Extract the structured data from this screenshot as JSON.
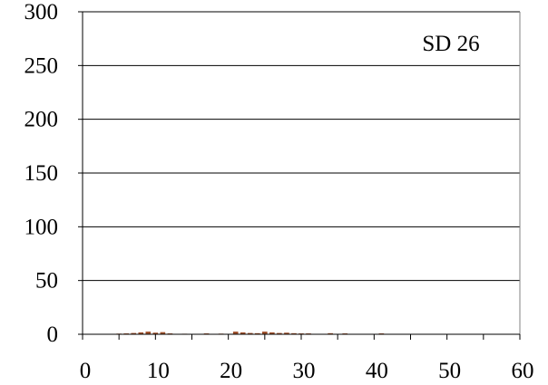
{
  "chart_data": {
    "type": "bar",
    "title": "",
    "xlabel": "",
    "ylabel": "",
    "annotation": "SD 26",
    "xlim": [
      0,
      60
    ],
    "ylim": [
      0,
      300
    ],
    "x_ticks": [
      0,
      10,
      20,
      30,
      40,
      50,
      60
    ],
    "y_ticks": [
      0,
      50,
      100,
      150,
      200,
      250,
      300
    ],
    "grid": "horizontal",
    "bar_color": "#a0522d",
    "bars": [
      {
        "x": 5,
        "value": 0.6
      },
      {
        "x": 6,
        "value": 0.8
      },
      {
        "x": 7,
        "value": 1.2
      },
      {
        "x": 8,
        "value": 1.8
      },
      {
        "x": 9,
        "value": 2.5
      },
      {
        "x": 10,
        "value": 1.5
      },
      {
        "x": 11,
        "value": 2.0
      },
      {
        "x": 12,
        "value": 0.8
      },
      {
        "x": 14,
        "value": 0.5
      },
      {
        "x": 17,
        "value": 0.8
      },
      {
        "x": 19,
        "value": 0.6
      },
      {
        "x": 21,
        "value": 2.5
      },
      {
        "x": 22,
        "value": 1.8
      },
      {
        "x": 23,
        "value": 1.2
      },
      {
        "x": 24,
        "value": 1.0
      },
      {
        "x": 25,
        "value": 2.5
      },
      {
        "x": 26,
        "value": 1.8
      },
      {
        "x": 27,
        "value": 1.2
      },
      {
        "x": 28,
        "value": 1.5
      },
      {
        "x": 29,
        "value": 1.0
      },
      {
        "x": 30,
        "value": 0.8
      },
      {
        "x": 31,
        "value": 0.8
      },
      {
        "x": 34,
        "value": 1.0
      },
      {
        "x": 36,
        "value": 0.8
      },
      {
        "x": 41,
        "value": 0.8
      }
    ]
  }
}
